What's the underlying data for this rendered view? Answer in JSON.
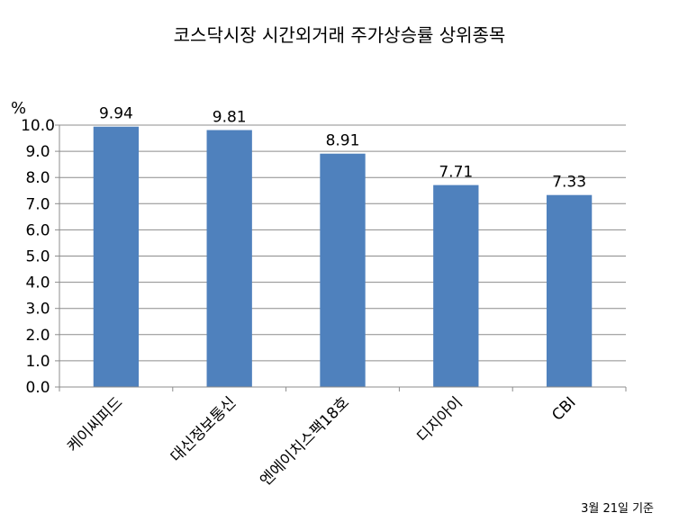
{
  "chart_data": {
    "type": "bar",
    "title": "코스닥시장 시간외거래  주가상승률 상위종목",
    "ylabel": "%",
    "xlabel": "",
    "categories": [
      "케이씨피드",
      "대신정보통신",
      "엔에이치스팩18호",
      "디지아이",
      "CBI"
    ],
    "values": [
      9.94,
      9.81,
      8.91,
      7.71,
      7.33
    ],
    "data_labels": [
      "9.94",
      "9.81",
      "8.91",
      "7.71",
      "7.33"
    ],
    "ylim": [
      0,
      10
    ],
    "yticks": [
      0,
      1,
      2,
      3,
      4,
      5,
      6,
      7,
      8,
      9,
      10
    ],
    "ytick_labels": [
      "0.0",
      "1.0",
      "2.0",
      "3.0",
      "4.0",
      "5.0",
      "6.0",
      "7.0",
      "8.0",
      "9.0",
      "10.0"
    ],
    "grid": true,
    "legend": "none",
    "bar_color": "#4F81BD",
    "footnote": "3월 21일 기준"
  }
}
